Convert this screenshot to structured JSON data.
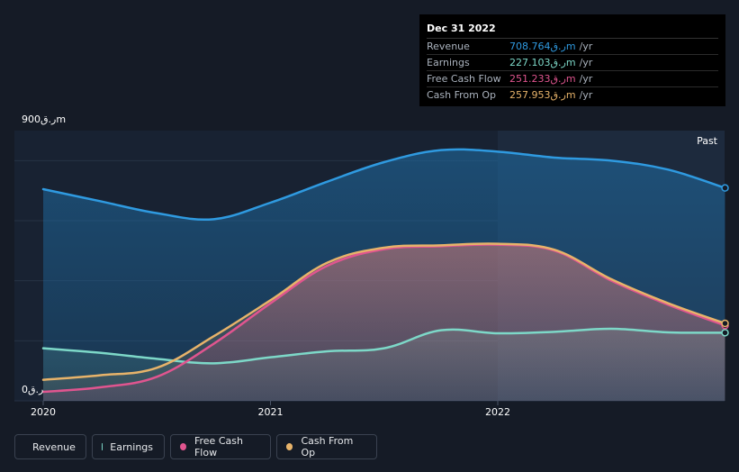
{
  "tooltip": {
    "date": "Dec 31 2022",
    "rows": [
      {
        "label": "Revenue",
        "value": "708.764ر.قm",
        "unit": "/yr",
        "color": "#2f9ae0"
      },
      {
        "label": "Earnings",
        "value": "227.103ر.قm",
        "unit": "/yr",
        "color": "#7dd8c8"
      },
      {
        "label": "Free Cash Flow",
        "value": "251.233ر.قm",
        "unit": "/yr",
        "color": "#e0558f"
      },
      {
        "label": "Cash From Op",
        "value": "257.953ر.قm",
        "unit": "/yr",
        "color": "#e7b36a"
      }
    ]
  },
  "chart_data": {
    "type": "area",
    "title": "",
    "y_top_label": "900ر.قm",
    "y_zero_label": "0ر.ق",
    "past_label": "Past",
    "ylim": [
      0,
      900
    ],
    "xlim": [
      2020.0,
      2023.0
    ],
    "x_ticks": [
      {
        "value": 2020.0,
        "label": "2020"
      },
      {
        "value": 2021.0,
        "label": "2021"
      },
      {
        "value": 2022.0,
        "label": "2022"
      }
    ],
    "highlight_x": 2022.0,
    "series": [
      {
        "name": "Revenue",
        "color": "#2f9ae0",
        "x": [
          2020.0,
          2020.25,
          2020.5,
          2020.75,
          2021.0,
          2021.25,
          2021.5,
          2021.75,
          2022.0,
          2022.25,
          2022.5,
          2022.75,
          2023.0
        ],
        "values": [
          705,
          665,
          625,
          605,
          660,
          730,
          795,
          835,
          830,
          810,
          800,
          770,
          709
        ]
      },
      {
        "name": "Earnings",
        "color": "#7dd8c8",
        "x": [
          2020.0,
          2020.25,
          2020.5,
          2020.75,
          2021.0,
          2021.25,
          2021.5,
          2021.75,
          2022.0,
          2022.25,
          2022.5,
          2022.75,
          2023.0
        ],
        "values": [
          175,
          160,
          140,
          125,
          145,
          165,
          175,
          235,
          225,
          230,
          240,
          228,
          227
        ]
      },
      {
        "name": "Free Cash Flow",
        "color": "#e0558f",
        "x": [
          2020.0,
          2020.25,
          2020.5,
          2020.75,
          2021.0,
          2021.25,
          2021.5,
          2021.75,
          2022.0,
          2022.25,
          2022.5,
          2022.75,
          2023.0
        ],
        "values": [
          30,
          45,
          80,
          190,
          325,
          450,
          505,
          515,
          520,
          500,
          400,
          320,
          251
        ]
      },
      {
        "name": "Cash From Op",
        "color": "#e7b36a",
        "x": [
          2020.0,
          2020.25,
          2020.5,
          2020.75,
          2021.0,
          2021.25,
          2021.5,
          2021.75,
          2022.0,
          2022.25,
          2022.5,
          2022.75,
          2023.0
        ],
        "values": [
          70,
          85,
          110,
          215,
          335,
          460,
          510,
          518,
          523,
          503,
          405,
          325,
          258
        ]
      }
    ]
  },
  "legend": [
    {
      "label": "Revenue",
      "color": "#2f9ae0"
    },
    {
      "label": "Earnings",
      "color": "#7dd8c8"
    },
    {
      "label": "Free Cash Flow",
      "color": "#e0558f"
    },
    {
      "label": "Cash From Op",
      "color": "#e7b36a"
    }
  ]
}
